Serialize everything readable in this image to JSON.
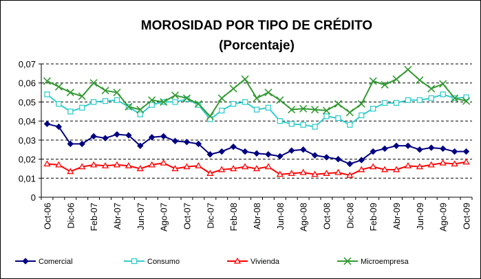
{
  "chart_data": {
    "type": "line",
    "title": "MOROSIDAD POR TIPO DE CRÉDITO",
    "subtitle": "(Porcentaje)",
    "categories": [
      "Oct-06",
      null,
      "Dic-06",
      null,
      "Feb-07",
      null,
      "Abr-07",
      null,
      "Jun-07",
      null,
      "Ago-07",
      null,
      "Oct-07",
      null,
      "Dic-07",
      null,
      "Feb-08",
      null,
      "Abr-08",
      null,
      "Jun-08",
      null,
      "Ago-08",
      null,
      "Oct-08",
      null,
      "Dic-08",
      null,
      "Feb-09",
      null,
      "Abr-09",
      null,
      "Jun-09",
      null,
      "Ago-09",
      null,
      "Oct-09"
    ],
    "series": [
      {
        "name": "Comercial",
        "color": "#000080",
        "marker": "diamond",
        "values": [
          0.0385,
          0.037,
          0.028,
          0.028,
          0.032,
          0.031,
          0.033,
          0.0325,
          0.027,
          0.0315,
          0.032,
          0.0295,
          0.029,
          0.028,
          0.0225,
          0.024,
          0.0265,
          0.024,
          0.023,
          0.0225,
          0.0215,
          0.0245,
          0.025,
          0.022,
          0.021,
          0.02,
          0.0175,
          0.0195,
          0.024,
          0.0255,
          0.027,
          0.027,
          0.025,
          0.026,
          0.0255,
          0.024,
          0.024
        ]
      },
      {
        "name": "Consumo",
        "color": "#33CCCC",
        "marker": "square",
        "values": [
          0.054,
          0.049,
          0.045,
          0.047,
          0.05,
          0.0505,
          0.051,
          0.0475,
          0.0435,
          0.0485,
          0.05,
          0.05,
          0.0515,
          0.0485,
          0.041,
          0.0455,
          0.049,
          0.05,
          0.046,
          0.047,
          0.04,
          0.0385,
          0.038,
          0.037,
          0.0425,
          0.0415,
          0.038,
          0.043,
          0.0465,
          0.0495,
          0.0495,
          0.051,
          0.051,
          0.052,
          0.054,
          0.052,
          0.0525
        ]
      },
      {
        "name": "Vivienda",
        "color": "#FF0000",
        "marker": "triangle",
        "values": [
          0.0175,
          0.017,
          0.0135,
          0.016,
          0.017,
          0.0165,
          0.017,
          0.0165,
          0.015,
          0.017,
          0.018,
          0.015,
          0.016,
          0.0165,
          0.0125,
          0.0145,
          0.015,
          0.016,
          0.015,
          0.016,
          0.012,
          0.0125,
          0.013,
          0.012,
          0.0125,
          0.013,
          0.0115,
          0.0145,
          0.016,
          0.0145,
          0.0145,
          0.0165,
          0.016,
          0.017,
          0.018,
          0.0175,
          0.0185
        ]
      },
      {
        "name": "Microempresa",
        "color": "#339933",
        "marker": "x",
        "values": [
          0.061,
          0.058,
          0.055,
          0.053,
          0.06,
          0.056,
          0.055,
          0.0475,
          0.046,
          0.051,
          0.05,
          0.0535,
          0.052,
          0.049,
          0.0425,
          0.052,
          0.057,
          0.062,
          0.052,
          0.055,
          0.051,
          0.046,
          0.0465,
          0.046,
          0.0455,
          0.049,
          0.0445,
          0.049,
          0.061,
          0.059,
          0.062,
          0.067,
          0.0615,
          0.057,
          0.0595,
          0.052,
          0.0505
        ]
      }
    ],
    "ylim": [
      0,
      0.07
    ],
    "yticks": [
      0,
      {
        "value": 0.01,
        "label": "0,01"
      },
      {
        "value": 0.02,
        "label": "0,02"
      },
      {
        "value": 0.03,
        "label": "0,03"
      },
      {
        "value": 0.04,
        "label": "0,04"
      },
      {
        "value": 0.05,
        "label": "0,05"
      },
      {
        "value": 0.06,
        "label": "0,06"
      },
      {
        "value": 0.07,
        "label": "0,07"
      }
    ],
    "grid": true,
    "legend": "bottom"
  }
}
